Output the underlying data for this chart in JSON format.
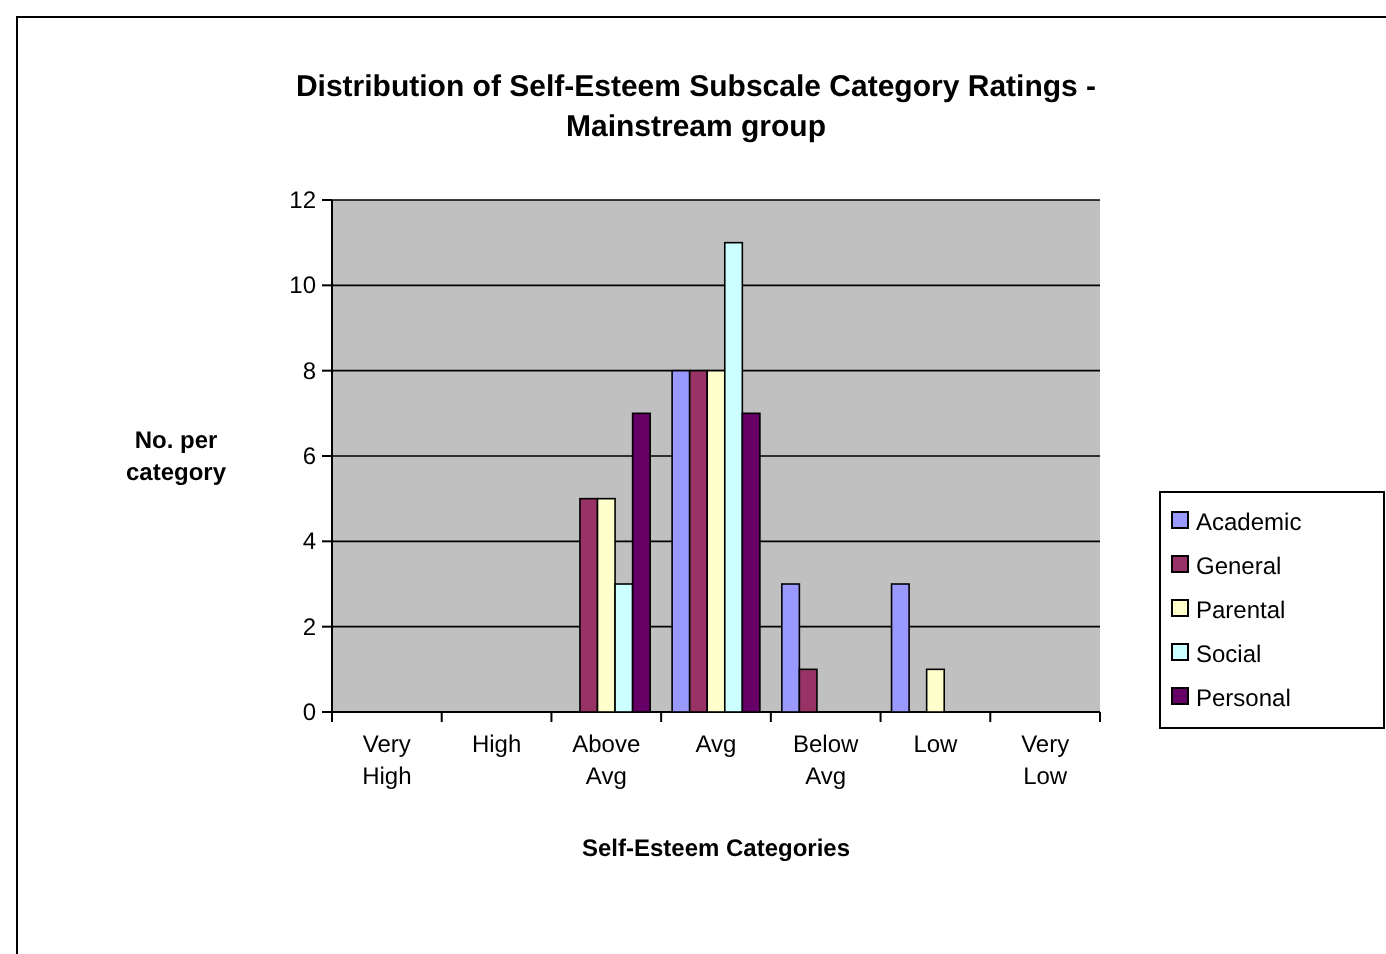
{
  "chart_data": {
    "type": "bar",
    "title": "Distribution of Self-Esteem Subscale Category Ratings - Mainstream group",
    "xlabel": "Self-Esteem Categories",
    "ylabel": "No. per category",
    "categories": [
      "Very High",
      "High",
      "Above Avg",
      "Avg",
      "Below Avg",
      "Low",
      "Very Low"
    ],
    "series": [
      {
        "name": "Academic",
        "color": "#9999ff",
        "values": [
          0,
          0,
          0,
          8,
          3,
          3,
          0
        ]
      },
      {
        "name": "General",
        "color": "#993366",
        "values": [
          0,
          0,
          5,
          8,
          1,
          0,
          0
        ]
      },
      {
        "name": "Parental",
        "color": "#ffffcc",
        "values": [
          0,
          0,
          5,
          8,
          0,
          1,
          0
        ]
      },
      {
        "name": "Social",
        "color": "#ccffff",
        "values": [
          0,
          0,
          3,
          11,
          0,
          0,
          0
        ]
      },
      {
        "name": "Personal",
        "color": "#660066",
        "values": [
          0,
          0,
          7,
          7,
          0,
          0,
          0
        ]
      }
    ],
    "ylim": [
      0,
      12
    ],
    "yticks": [
      0,
      2,
      4,
      6,
      8,
      10,
      12
    ],
    "grid": "y",
    "legend": "right"
  }
}
